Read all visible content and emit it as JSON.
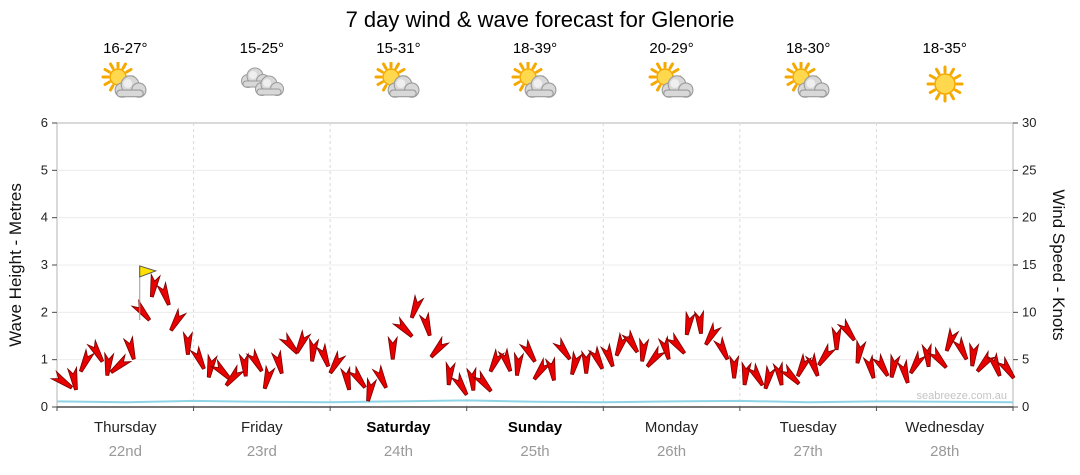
{
  "title": "7 day wind & wave forecast for Glenorie",
  "watermark": "seabreeze.com.au",
  "chart_data": {
    "type": "line",
    "title": "7 day wind & wave forecast for Glenorie",
    "left_axis": {
      "label": "Wave Height - Metres",
      "ticks": [
        0,
        1,
        2,
        3,
        4,
        5,
        6
      ],
      "lim": [
        0,
        6
      ]
    },
    "right_axis": {
      "label": "Wind Speed - Knots",
      "ticks": [
        0,
        5,
        10,
        15,
        20,
        25,
        30
      ],
      "lim": [
        0,
        30
      ]
    },
    "grid": true,
    "days": [
      {
        "name": "Thursday",
        "date": "22nd",
        "temp": "16-27°",
        "icon": "sun-cloud",
        "weekend": false
      },
      {
        "name": "Friday",
        "date": "23rd",
        "temp": "15-25°",
        "icon": "cloudy",
        "weekend": false
      },
      {
        "name": "Saturday",
        "date": "24th",
        "temp": "15-31°",
        "icon": "sun-cloud",
        "weekend": true
      },
      {
        "name": "Sunday",
        "date": "25th",
        "temp": "18-39°",
        "icon": "sun-cloud",
        "weekend": true
      },
      {
        "name": "Monday",
        "date": "26th",
        "temp": "20-29°",
        "icon": "sun-cloud",
        "weekend": false
      },
      {
        "name": "Tuesday",
        "date": "27th",
        "temp": "18-30°",
        "icon": "sun-cloud",
        "weekend": false
      },
      {
        "name": "Wednesday",
        "date": "28th",
        "temp": "18-35°",
        "icon": "sunny",
        "weekend": false
      }
    ],
    "points_per_day": 12,
    "wind_knots": [
      2.5,
      3.5,
      4.5,
      5.5,
      4.5,
      4,
      6.5,
      10.5,
      13,
      12,
      9,
      6.5,
      5,
      4.5,
      4,
      3.5,
      4,
      4.5,
      3.5,
      5,
      7,
      6.5,
      6,
      5.5,
      4.5,
      3.5,
      2.5,
      2,
      3,
      6,
      8.5,
      10,
      9,
      6.5,
      3.5,
      2,
      2.5,
      3,
      4.5,
      5,
      4.5,
      5.5,
      4,
      4.5,
      5.5,
      5,
      4.5,
      5,
      5.5,
      6,
      6.5,
      6,
      5.5,
      6.5,
      7,
      9,
      8.5,
      7.5,
      6,
      4,
      3.5,
      3,
      3.5,
      4,
      3.5,
      4,
      4.5,
      5.5,
      7,
      7.5,
      6,
      4.5,
      4,
      4.5,
      4,
      4.5,
      5,
      5.5,
      6.5,
      6,
      5.5,
      5,
      4.5,
      3.5
    ],
    "wind_dir_deg": [
      35,
      80,
      115,
      60,
      95,
      140,
      75,
      50,
      100,
      70,
      120,
      90,
      65,
      100,
      45,
      130,
      85,
      60,
      105,
      75,
      50,
      115,
      95,
      70,
      120,
      80,
      55,
      100,
      65,
      90,
      45,
      110,
      75,
      130,
      95,
      60,
      85,
      50,
      115,
      70,
      95,
      60,
      125,
      80,
      55,
      105,
      90,
      65,
      70,
      110,
      60,
      95,
      130,
      75,
      50,
      100,
      85,
      120,
      65,
      90,
      95,
      60,
      105,
      80,
      45,
      115,
      70,
      125,
      90,
      55,
      100,
      75,
      60,
      100,
      75,
      120,
      85,
      50,
      110,
      65,
      95,
      130,
      70,
      55
    ],
    "wave_m": [
      0.12,
      0.1,
      0.13,
      0.11,
      0.1,
      0.12,
      0.14,
      0.11,
      0.1,
      0.12,
      0.13,
      0.1,
      0.12,
      0.11,
      0.1
    ],
    "peak_flag": {
      "index": 8,
      "color": "#ffe000"
    },
    "colors": {
      "arrow": "#e60000",
      "arrow_stroke": "#7a0000",
      "wave": "#8fd4e6",
      "flag": "#ffe000",
      "grid": "#ececec",
      "day_grid": "#d9d9d9",
      "axis": "#4a4a4a",
      "border": "#b5b5b5",
      "sun": "#ffd84d",
      "sun_ray": "#f5a800",
      "cloud": "#d8d8d8",
      "cloud_stroke": "#9a9a9a"
    }
  }
}
